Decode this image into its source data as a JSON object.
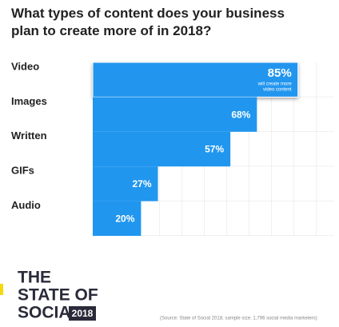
{
  "chart_data": {
    "type": "bar",
    "orientation": "horizontal",
    "title": "What types of content does your business plan to create more of in 2018?",
    "categories": [
      "Video",
      "Images",
      "Written",
      "GIFs",
      "Audio"
    ],
    "values": [
      85,
      68,
      57,
      27,
      20
    ],
    "value_labels": [
      "85%",
      "68%",
      "57%",
      "27%",
      "20%"
    ],
    "annotation_lines": [
      "will create more",
      "video content"
    ],
    "color": "#2196ef",
    "xlim": [
      0,
      100
    ],
    "grid": true
  },
  "footer": {
    "brand_lines": [
      "THE",
      "STATE OF",
      "SOCIAL"
    ],
    "brand_year": "2018",
    "source": "(Source: State of Social 2018, sample size: 1,796 social media marketers)"
  }
}
